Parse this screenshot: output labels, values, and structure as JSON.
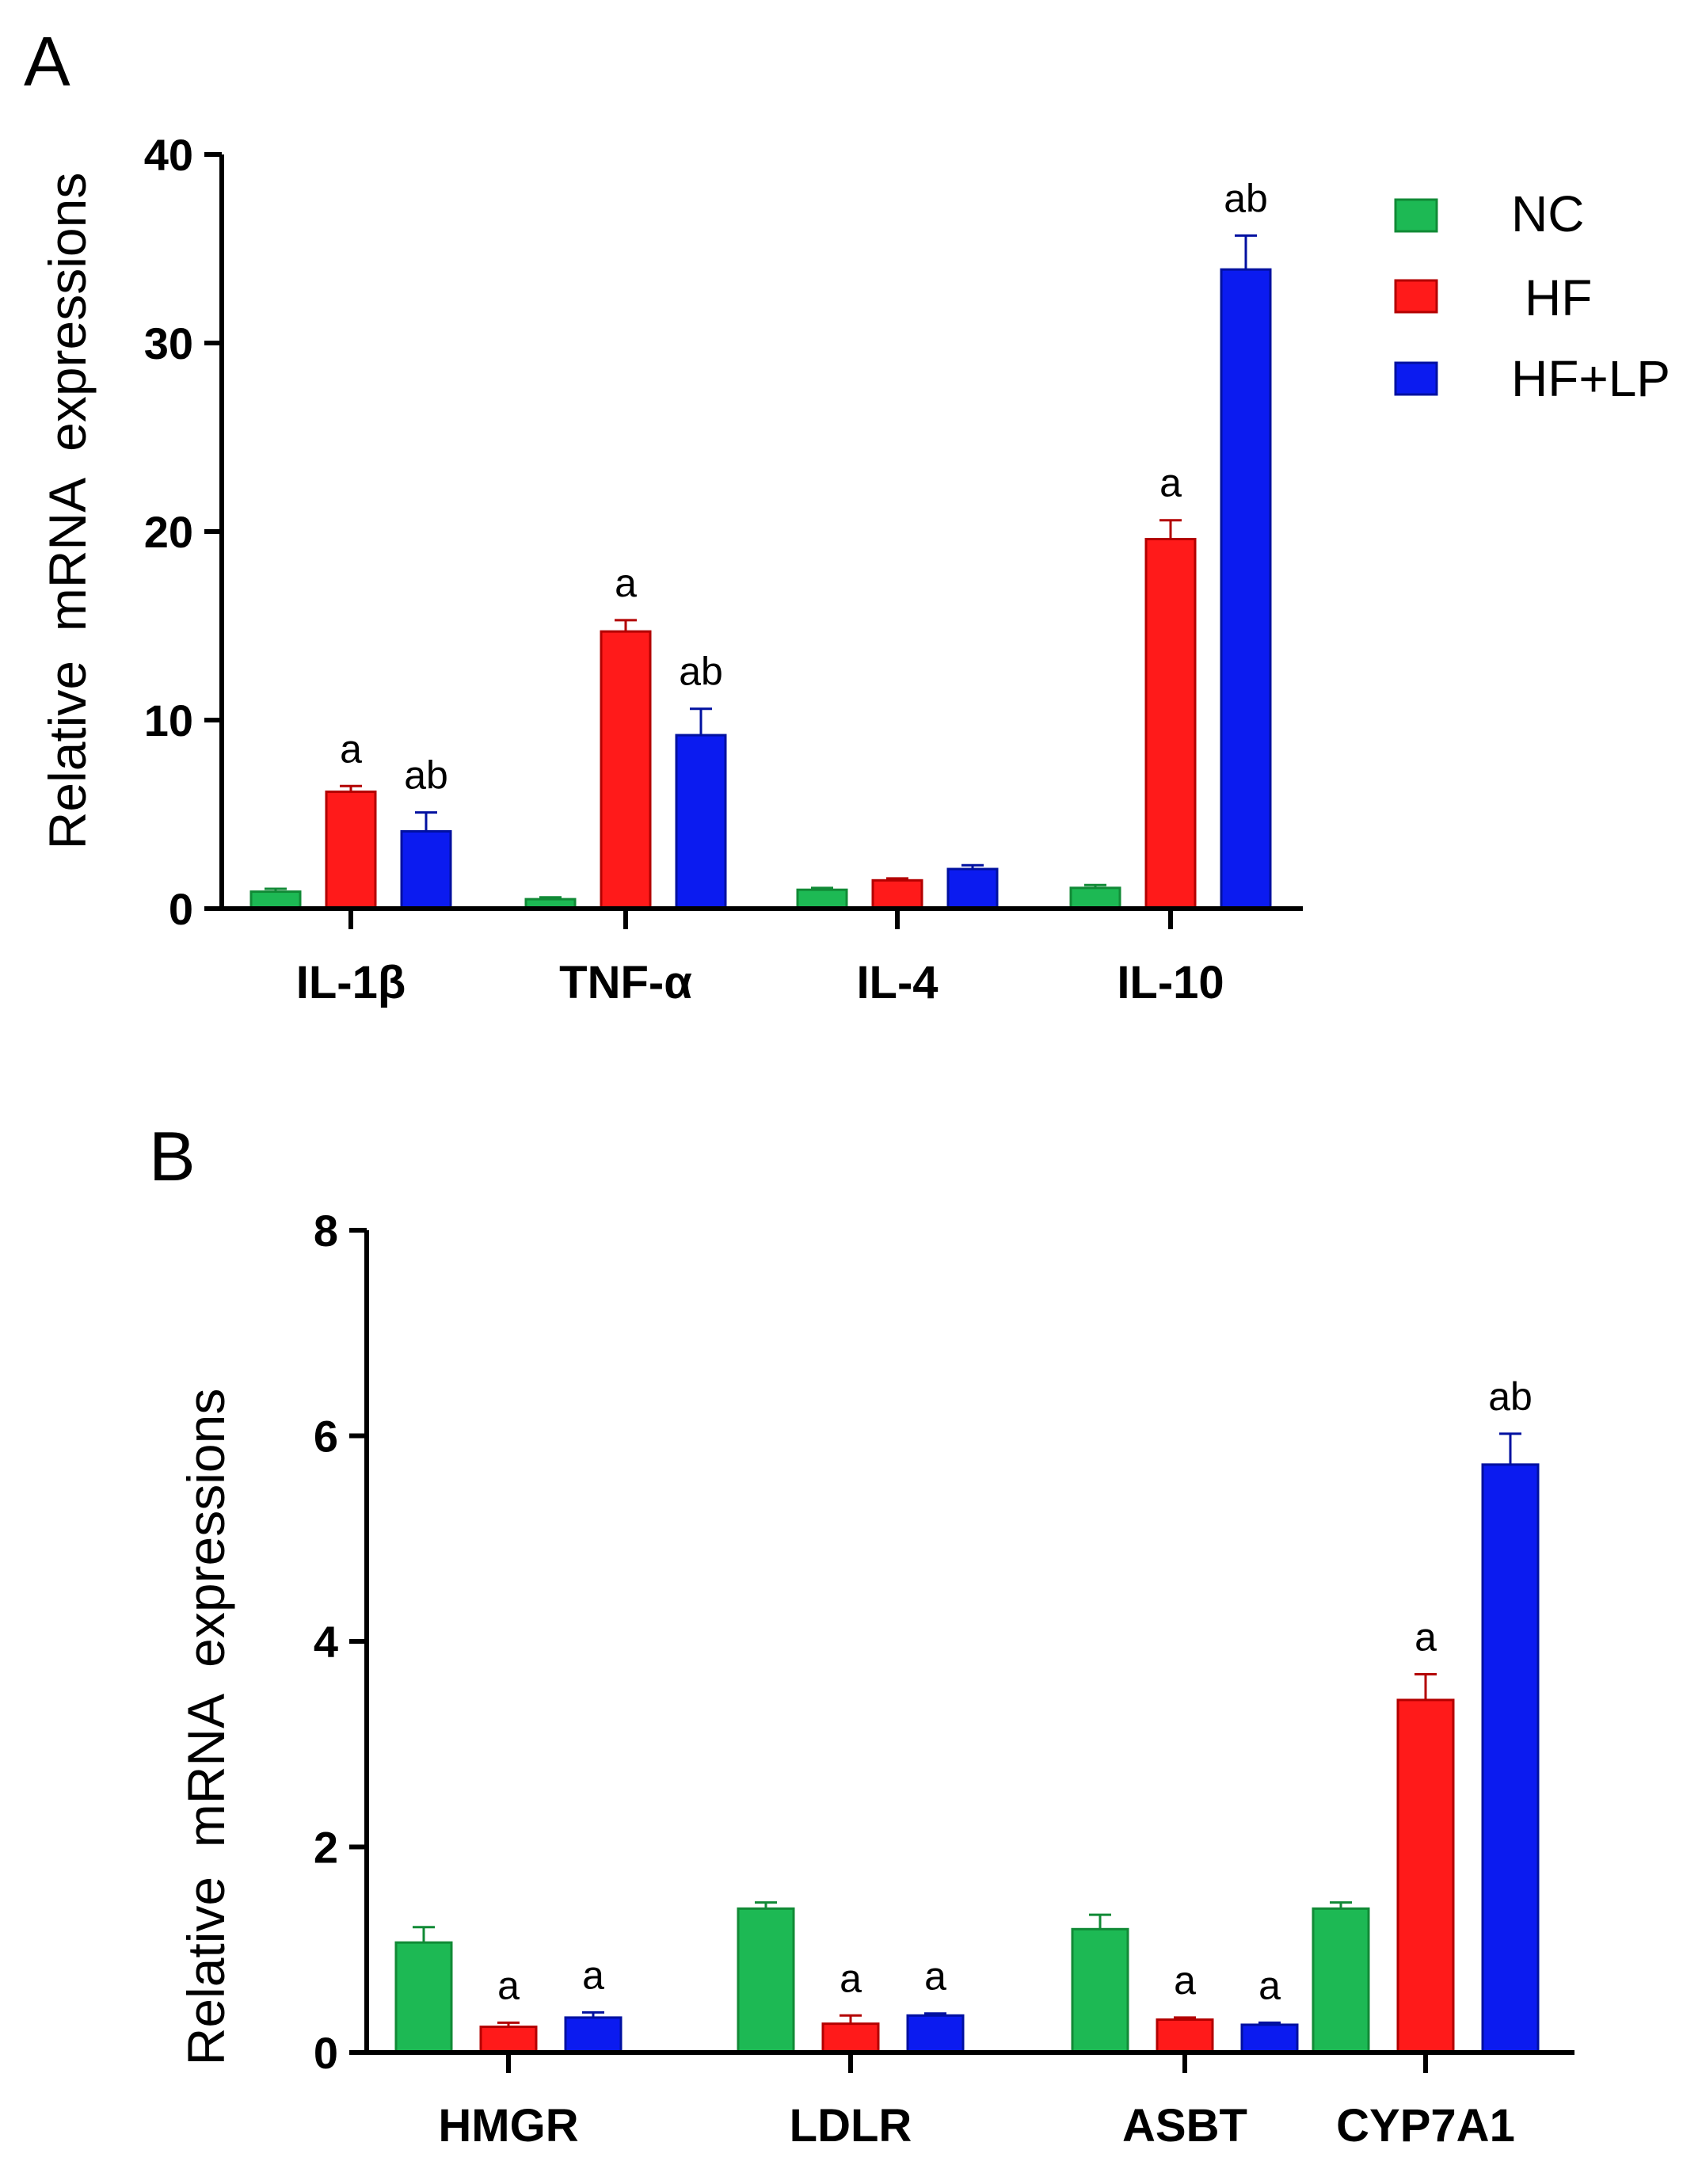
{
  "legend": [
    {
      "name": "NC",
      "color": "#1DB954",
      "color_dark": "#118a36"
    },
    {
      "name": "HF",
      "color": "#FF1A1A",
      "color_dark": "#b30000"
    },
    {
      "name": "HF+LP",
      "color": "#0B1BF0",
      "color_dark": "#0010a0"
    }
  ],
  "chart_data": [
    {
      "panel": "A",
      "type": "bar",
      "title": "",
      "xlabel": "",
      "ylabel": "Relative  mRNA  expressions",
      "ylim": [
        0,
        40
      ],
      "yticks": [
        0,
        10,
        20,
        30,
        40
      ],
      "categories": [
        "IL-1β",
        "TNF-α",
        "IL-4",
        "IL-10"
      ],
      "series": [
        {
          "name": "NC",
          "values": [
            0.9,
            0.5,
            1.0,
            1.1
          ],
          "errors": [
            0.15,
            0.1,
            0.1,
            0.15
          ],
          "labels": [
            "",
            "",
            "",
            ""
          ]
        },
        {
          "name": "HF",
          "values": [
            6.2,
            14.7,
            1.5,
            19.6
          ],
          "errors": [
            0.3,
            0.6,
            0.1,
            1.0
          ],
          "labels": [
            "a",
            "a",
            "",
            "a"
          ]
        },
        {
          "name": "HF+LP",
          "values": [
            4.1,
            9.2,
            2.1,
            33.9
          ],
          "errors": [
            1.0,
            1.4,
            0.2,
            1.8
          ],
          "labels": [
            "ab",
            "ab",
            "",
            "ab"
          ]
        }
      ]
    },
    {
      "panel": "B",
      "type": "bar",
      "title": "",
      "xlabel": "",
      "ylabel": "Relative  mRNA  expressions",
      "ylim": [
        0,
        8
      ],
      "yticks": [
        0,
        2,
        4,
        6,
        8
      ],
      "categories": [
        "HMGR",
        "LDLR",
        "ASBT",
        "CYP7A1"
      ],
      "series": [
        {
          "name": "NC",
          "values": [
            1.07,
            1.4,
            1.2,
            1.4
          ],
          "errors": [
            0.15,
            0.06,
            0.14,
            0.06
          ],
          "labels": [
            "",
            "",
            "",
            ""
          ]
        },
        {
          "name": "HF",
          "values": [
            0.25,
            0.28,
            0.32,
            3.43
          ],
          "errors": [
            0.04,
            0.08,
            0.02,
            0.25
          ],
          "labels": [
            "a",
            "a",
            "a",
            "a"
          ]
        },
        {
          "name": "HF+LP",
          "values": [
            0.34,
            0.36,
            0.27,
            5.72
          ],
          "errors": [
            0.05,
            0.02,
            0.02,
            0.3
          ],
          "labels": [
            "a",
            "a",
            "a",
            "ab"
          ]
        }
      ]
    }
  ]
}
